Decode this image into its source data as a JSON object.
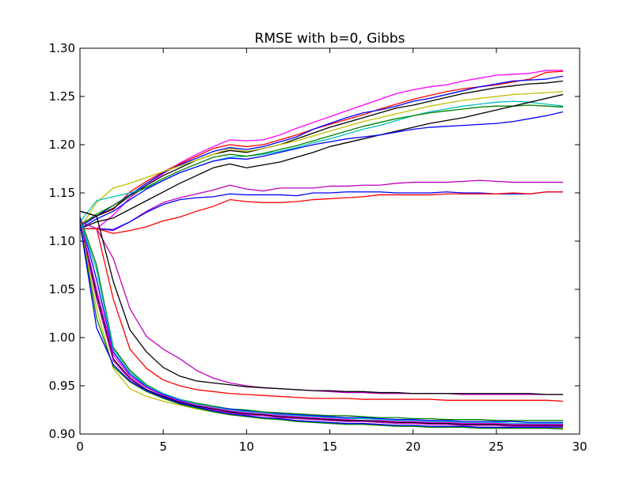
{
  "chart_data": {
    "type": "line",
    "title": "RMSE with b=0, Gibbs",
    "xlabel": "",
    "ylabel": "",
    "xlim": [
      0,
      30
    ],
    "ylim": [
      0.9,
      1.3
    ],
    "xticks": [
      0,
      5,
      10,
      15,
      20,
      25,
      30
    ],
    "xtick_labels": [
      "0",
      "5",
      "10",
      "15",
      "20",
      "25",
      "30"
    ],
    "yticks": [
      0.9,
      0.95,
      1.0,
      1.05,
      1.1,
      1.15,
      1.2,
      1.25,
      1.3
    ],
    "ytick_labels": [
      "0.90",
      "0.95",
      "1.00",
      "1.05",
      "1.10",
      "1.15",
      "1.20",
      "1.25",
      "1.30"
    ],
    "grid": false,
    "legend": "none",
    "x": [
      0,
      1,
      2,
      3,
      4,
      5,
      6,
      7,
      8,
      9,
      10,
      11,
      12,
      13,
      14,
      15,
      16,
      17,
      18,
      19,
      20,
      21,
      22,
      23,
      24,
      25,
      26,
      27,
      28,
      29
    ],
    "series": [
      {
        "color": "#ff00ff",
        "values": [
          1.113,
          1.113,
          1.127,
          1.145,
          1.158,
          1.17,
          1.181,
          1.19,
          1.198,
          1.205,
          1.204,
          1.205,
          1.21,
          1.217,
          1.223,
          1.229,
          1.235,
          1.241,
          1.247,
          1.253,
          1.257,
          1.26,
          1.262,
          1.266,
          1.269,
          1.272,
          1.273,
          1.274,
          1.277,
          1.277
        ]
      },
      {
        "color": "#ff0000",
        "values": [
          1.118,
          1.126,
          1.133,
          1.151,
          1.162,
          1.172,
          1.18,
          1.188,
          1.196,
          1.2,
          1.198,
          1.2,
          1.205,
          1.21,
          1.216,
          1.221,
          1.226,
          1.231,
          1.237,
          1.242,
          1.247,
          1.251,
          1.255,
          1.258,
          1.26,
          1.262,
          1.265,
          1.268,
          1.275,
          1.276
        ]
      },
      {
        "color": "#0000ff",
        "values": [
          1.115,
          1.126,
          1.137,
          1.148,
          1.16,
          1.171,
          1.179,
          1.186,
          1.193,
          1.197,
          1.195,
          1.198,
          1.203,
          1.208,
          1.216,
          1.222,
          1.228,
          1.233,
          1.236,
          1.24,
          1.245,
          1.248,
          1.252,
          1.256,
          1.26,
          1.263,
          1.266,
          1.267,
          1.268,
          1.271
        ]
      },
      {
        "color": "#000000",
        "values": [
          1.131,
          1.126,
          1.134,
          1.147,
          1.158,
          1.168,
          1.176,
          1.184,
          1.19,
          1.194,
          1.192,
          1.196,
          1.2,
          1.206,
          1.212,
          1.218,
          1.223,
          1.228,
          1.233,
          1.238,
          1.241,
          1.245,
          1.249,
          1.253,
          1.256,
          1.259,
          1.261,
          1.263,
          1.264,
          1.266
        ]
      },
      {
        "color": "#bfbf00",
        "values": [
          1.113,
          1.14,
          1.155,
          1.16,
          1.166,
          1.172,
          1.178,
          1.184,
          1.19,
          1.196,
          1.193,
          1.196,
          1.2,
          1.204,
          1.209,
          1.214,
          1.219,
          1.224,
          1.228,
          1.232,
          1.236,
          1.24,
          1.243,
          1.246,
          1.248,
          1.25,
          1.252,
          1.253,
          1.254,
          1.255
        ]
      },
      {
        "color": "#00bfbf",
        "values": [
          1.12,
          1.142,
          1.146,
          1.15,
          1.155,
          1.163,
          1.171,
          1.177,
          1.183,
          1.187,
          1.188,
          1.19,
          1.193,
          1.197,
          1.202,
          1.206,
          1.211,
          1.216,
          1.22,
          1.225,
          1.23,
          1.234,
          1.237,
          1.24,
          1.242,
          1.244,
          1.245,
          1.244,
          1.242,
          1.24
        ]
      },
      {
        "color": "#008000",
        "values": [
          1.116,
          1.128,
          1.137,
          1.147,
          1.156,
          1.165,
          1.173,
          1.18,
          1.187,
          1.19,
          1.188,
          1.191,
          1.195,
          1.199,
          1.204,
          1.209,
          1.214,
          1.219,
          1.223,
          1.227,
          1.23,
          1.233,
          1.235,
          1.237,
          1.239,
          1.24,
          1.24,
          1.241,
          1.24,
          1.239
        ]
      },
      {
        "color": "#000000",
        "values": [
          1.113,
          1.12,
          1.124,
          1.133,
          1.142,
          1.151,
          1.16,
          1.168,
          1.176,
          1.18,
          1.176,
          1.179,
          1.182,
          1.187,
          1.192,
          1.198,
          1.202,
          1.206,
          1.21,
          1.214,
          1.218,
          1.222,
          1.225,
          1.228,
          1.232,
          1.236,
          1.24,
          1.244,
          1.248,
          1.252
        ]
      },
      {
        "color": "#0000ff",
        "values": [
          1.113,
          1.123,
          1.131,
          1.143,
          1.154,
          1.163,
          1.171,
          1.177,
          1.183,
          1.186,
          1.185,
          1.188,
          1.192,
          1.196,
          1.2,
          1.203,
          1.206,
          1.208,
          1.21,
          1.213,
          1.216,
          1.218,
          1.219,
          1.22,
          1.221,
          1.222,
          1.224,
          1.227,
          1.23,
          1.234
        ]
      },
      {
        "color": "#bf00bf",
        "values": [
          1.113,
          1.113,
          1.111,
          1.12,
          1.131,
          1.14,
          1.145,
          1.149,
          1.153,
          1.158,
          1.154,
          1.152,
          1.155,
          1.155,
          1.155,
          1.157,
          1.157,
          1.158,
          1.158,
          1.16,
          1.161,
          1.161,
          1.161,
          1.162,
          1.163,
          1.162,
          1.161,
          1.161,
          1.161,
          1.161
        ]
      },
      {
        "color": "#0000ff",
        "values": [
          1.113,
          1.113,
          1.112,
          1.12,
          1.13,
          1.138,
          1.143,
          1.145,
          1.146,
          1.149,
          1.148,
          1.148,
          1.148,
          1.147,
          1.15,
          1.15,
          1.151,
          1.151,
          1.151,
          1.15,
          1.15,
          1.15,
          1.151,
          1.15,
          1.15,
          1.149,
          1.149,
          1.149,
          1.151,
          1.151
        ]
      },
      {
        "color": "#ff0000",
        "values": [
          1.113,
          1.113,
          1.108,
          1.111,
          1.115,
          1.121,
          1.125,
          1.131,
          1.136,
          1.143,
          1.141,
          1.14,
          1.14,
          1.141,
          1.143,
          1.144,
          1.145,
          1.146,
          1.148,
          1.148,
          1.148,
          1.148,
          1.149,
          1.149,
          1.149,
          1.149,
          1.15,
          1.149,
          1.151,
          1.151
        ]
      },
      {
        "color": "#bf00bf",
        "values": [
          1.12,
          1.113,
          1.082,
          1.03,
          1.001,
          0.988,
          0.978,
          0.966,
          0.958,
          0.953,
          0.95,
          0.948,
          0.947,
          0.946,
          0.945,
          0.944,
          0.943,
          0.943,
          0.942,
          0.942,
          0.942,
          0.942,
          0.942,
          0.941,
          0.941,
          0.941,
          0.941,
          0.941,
          0.941,
          0.941
        ]
      },
      {
        "color": "#000000",
        "values": [
          1.131,
          1.126,
          1.058,
          1.008,
          0.985,
          0.969,
          0.96,
          0.955,
          0.953,
          0.951,
          0.949,
          0.948,
          0.947,
          0.946,
          0.945,
          0.945,
          0.944,
          0.944,
          0.943,
          0.943,
          0.942,
          0.942,
          0.942,
          0.942,
          0.942,
          0.942,
          0.942,
          0.942,
          0.941,
          0.941
        ]
      },
      {
        "color": "#ff0000",
        "values": [
          1.113,
          1.113,
          1.04,
          0.988,
          0.968,
          0.956,
          0.95,
          0.946,
          0.944,
          0.942,
          0.941,
          0.94,
          0.939,
          0.938,
          0.937,
          0.937,
          0.937,
          0.936,
          0.936,
          0.936,
          0.936,
          0.936,
          0.935,
          0.935,
          0.935,
          0.935,
          0.935,
          0.935,
          0.935,
          0.934
        ]
      },
      {
        "color": "#008000",
        "values": [
          1.125,
          1.075,
          0.99,
          0.966,
          0.951,
          0.942,
          0.936,
          0.932,
          0.929,
          0.926,
          0.925,
          0.923,
          0.922,
          0.921,
          0.92,
          0.919,
          0.919,
          0.918,
          0.917,
          0.917,
          0.916,
          0.916,
          0.915,
          0.915,
          0.915,
          0.914,
          0.914,
          0.914,
          0.914,
          0.914
        ]
      },
      {
        "color": "#0000ff",
        "values": [
          1.124,
          1.06,
          0.985,
          0.962,
          0.949,
          0.941,
          0.935,
          0.931,
          0.928,
          0.926,
          0.924,
          0.922,
          0.921,
          0.92,
          0.919,
          0.918,
          0.917,
          0.917,
          0.916,
          0.915,
          0.915,
          0.914,
          0.914,
          0.913,
          0.913,
          0.913,
          0.913,
          0.912,
          0.912,
          0.912
        ]
      },
      {
        "color": "#00bfbf",
        "values": [
          1.122,
          1.07,
          0.988,
          0.964,
          0.95,
          0.942,
          0.936,
          0.931,
          0.928,
          0.925,
          0.923,
          0.922,
          0.92,
          0.919,
          0.918,
          0.917,
          0.916,
          0.916,
          0.915,
          0.914,
          0.914,
          0.913,
          0.913,
          0.912,
          0.912,
          0.912,
          0.911,
          0.911,
          0.911,
          0.911
        ]
      },
      {
        "color": "#ff00ff",
        "values": [
          1.121,
          1.05,
          0.982,
          0.96,
          0.948,
          0.94,
          0.934,
          0.93,
          0.927,
          0.924,
          0.922,
          0.921,
          0.919,
          0.918,
          0.917,
          0.916,
          0.915,
          0.914,
          0.914,
          0.913,
          0.913,
          0.912,
          0.912,
          0.911,
          0.911,
          0.911,
          0.91,
          0.91,
          0.91,
          0.91
        ]
      },
      {
        "color": "#000000",
        "values": [
          1.12,
          1.045,
          0.978,
          0.958,
          0.946,
          0.939,
          0.933,
          0.929,
          0.926,
          0.923,
          0.921,
          0.92,
          0.918,
          0.917,
          0.916,
          0.915,
          0.914,
          0.914,
          0.913,
          0.912,
          0.912,
          0.911,
          0.911,
          0.91,
          0.91,
          0.91,
          0.909,
          0.909,
          0.909,
          0.909
        ]
      },
      {
        "color": "#bf00bf",
        "values": [
          1.12,
          1.04,
          0.976,
          0.957,
          0.945,
          0.938,
          0.932,
          0.928,
          0.925,
          0.922,
          0.92,
          0.919,
          0.917,
          0.916,
          0.915,
          0.914,
          0.913,
          0.913,
          0.912,
          0.911,
          0.911,
          0.91,
          0.91,
          0.909,
          0.909,
          0.909,
          0.908,
          0.908,
          0.908,
          0.908
        ]
      },
      {
        "color": "#bfbf00",
        "values": [
          1.119,
          1.03,
          0.968,
          0.947,
          0.939,
          0.934,
          0.93,
          0.926,
          0.923,
          0.92,
          0.918,
          0.917,
          0.915,
          0.914,
          0.913,
          0.912,
          0.911,
          0.911,
          0.91,
          0.909,
          0.909,
          0.908,
          0.908,
          0.908,
          0.907,
          0.907,
          0.907,
          0.907,
          0.906,
          0.906
        ]
      },
      {
        "color": "#008000",
        "values": [
          1.119,
          1.02,
          0.97,
          0.954,
          0.944,
          0.937,
          0.931,
          0.927,
          0.923,
          0.92,
          0.918,
          0.916,
          0.915,
          0.913,
          0.912,
          0.911,
          0.91,
          0.91,
          0.909,
          0.908,
          0.908,
          0.907,
          0.907,
          0.907,
          0.906,
          0.906,
          0.906,
          0.906,
          0.906,
          0.905
        ]
      },
      {
        "color": "#0000ff",
        "values": [
          1.118,
          1.01,
          0.972,
          0.955,
          0.945,
          0.938,
          0.932,
          0.928,
          0.924,
          0.921,
          0.919,
          0.917,
          0.916,
          0.914,
          0.913,
          0.912,
          0.911,
          0.911,
          0.91,
          0.909,
          0.909,
          0.908,
          0.908,
          0.908,
          0.907,
          0.907,
          0.907,
          0.907,
          0.907,
          0.907
        ]
      }
    ]
  }
}
